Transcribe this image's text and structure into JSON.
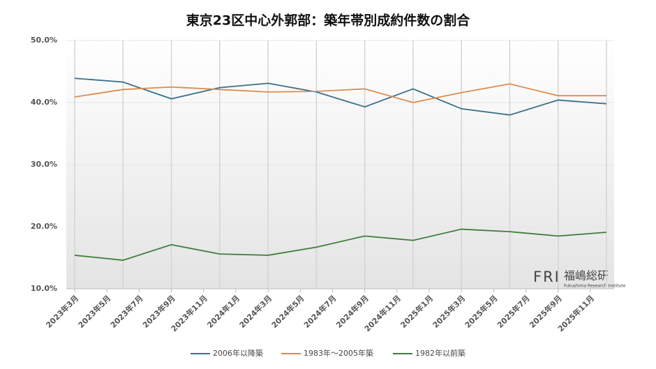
{
  "chart_data": {
    "type": "line",
    "title": "東京23区中心外郭部：築年帯別成約件数の割合",
    "x": [
      "2023-03",
      "2023-06",
      "2023-09",
      "2023-12",
      "2024-03",
      "2024-06",
      "2024-09",
      "2024-12",
      "2025-03",
      "2025-06",
      "2025-09",
      "2025-12"
    ],
    "xlim": [
      "2023-03",
      "2025-12"
    ],
    "xticks": [
      {
        "value": "2023-03",
        "label": "2023年3月"
      },
      {
        "value": "2023-05",
        "label": "2023年5月"
      },
      {
        "value": "2023-07",
        "label": "2023年7月"
      },
      {
        "value": "2023-09",
        "label": "2023年9月"
      },
      {
        "value": "2023-11",
        "label": "2023年11月"
      },
      {
        "value": "2024-01",
        "label": "2024年1月"
      },
      {
        "value": "2024-03",
        "label": "2024年3月"
      },
      {
        "value": "2024-05",
        "label": "2024年5月"
      },
      {
        "value": "2024-07",
        "label": "2024年7月"
      },
      {
        "value": "2024-09",
        "label": "2024年9月"
      },
      {
        "value": "2024-11",
        "label": "2024年11月"
      },
      {
        "value": "2025-01",
        "label": "2025年1月"
      },
      {
        "value": "2025-03",
        "label": "2025年3月"
      },
      {
        "value": "2025-05",
        "label": "2025年5月"
      },
      {
        "value": "2025-07",
        "label": "2025年7月"
      },
      {
        "value": "2025-09",
        "label": "2025年9月"
      },
      {
        "value": "2025-11",
        "label": "2025年11月"
      }
    ],
    "ylim": [
      10,
      50
    ],
    "yticks": [
      {
        "value": 10,
        "label": "10.0%"
      },
      {
        "value": 20,
        "label": "20.0%"
      },
      {
        "value": 30,
        "label": "30.0%"
      },
      {
        "value": 40,
        "label": "40.0%"
      },
      {
        "value": 50,
        "label": "50.0%"
      }
    ],
    "series": [
      {
        "name": "2006年以降築",
        "color": "#3a6f8a",
        "values": [
          43.9,
          43.3,
          40.6,
          42.4,
          43.1,
          41.7,
          39.3,
          42.2,
          39.0,
          38.0,
          40.4,
          39.8
        ]
      },
      {
        "name": "1983年～2005年築",
        "color": "#e08a4c",
        "values": [
          40.9,
          42.1,
          42.5,
          42.1,
          41.7,
          41.8,
          42.2,
          40.0,
          41.6,
          43.0,
          41.1,
          41.1
        ]
      },
      {
        "name": "1982年以前築",
        "color": "#3f7d3a",
        "values": [
          15.4,
          14.6,
          17.1,
          15.6,
          15.4,
          16.7,
          18.5,
          17.8,
          19.6,
          19.2,
          18.5,
          19.1
        ]
      }
    ],
    "logo": {
      "mark": "FRI",
      "name": "福嶋総研",
      "subtitle": "Fukushima Research Institute"
    }
  }
}
